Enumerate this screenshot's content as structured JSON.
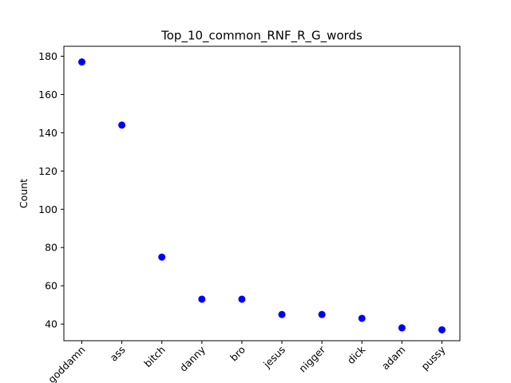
{
  "chart_data": {
    "type": "scatter",
    "title": "Top_10_common_RNF_R_G_words",
    "xlabel": "",
    "ylabel": "Count",
    "categories": [
      "goddamn",
      "ass",
      "bitch",
      "danny",
      "bro",
      "jesus",
      "nigger",
      "dick",
      "adam",
      "pussy"
    ],
    "values": [
      177,
      144,
      75,
      53,
      53,
      45,
      45,
      43,
      38,
      37
    ],
    "ylim": [
      31.3,
      185.2
    ],
    "yticks": [
      40,
      60,
      80,
      100,
      120,
      140,
      160,
      180
    ],
    "marker_color": "#0000ff",
    "grid": false,
    "legend": "none"
  }
}
